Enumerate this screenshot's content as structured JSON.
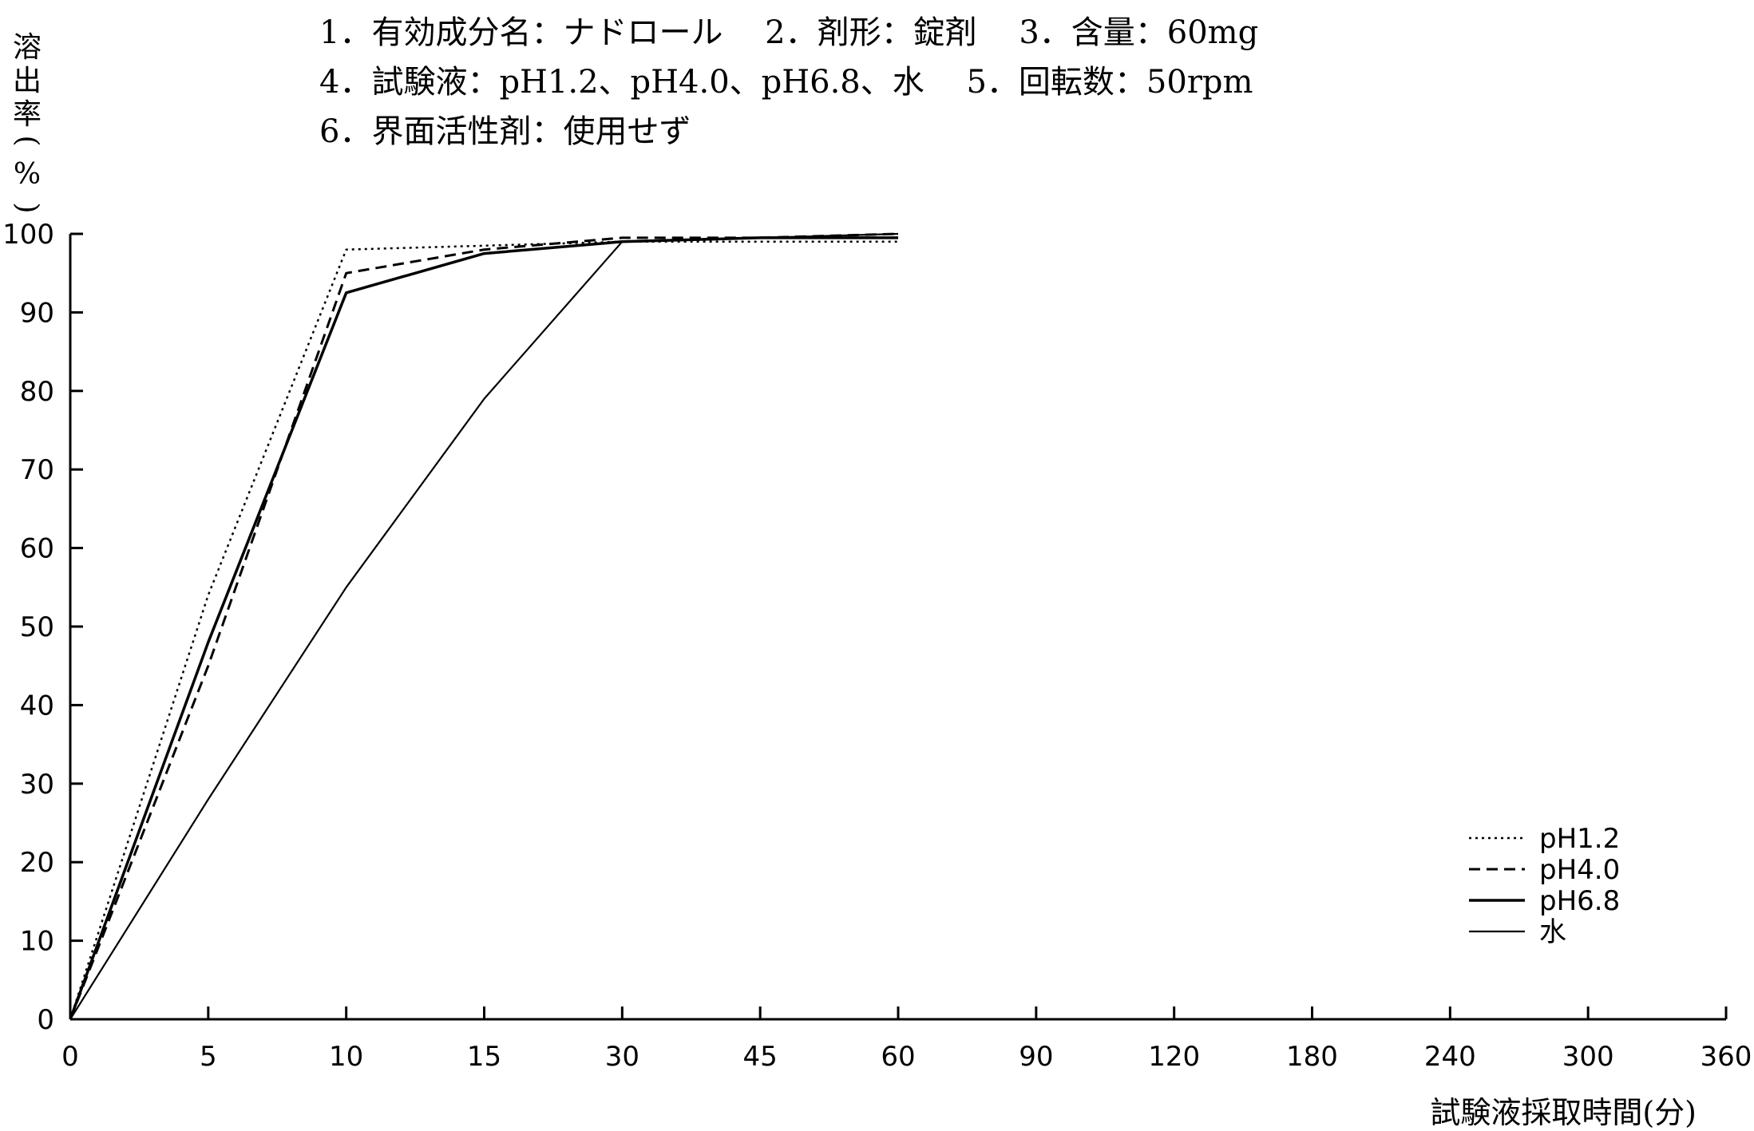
{
  "header": {
    "line1": "1．有効成分名：ナドロール　 2．剤形：錠剤　 3．含量：60mg",
    "line2": "4．試験液：pH1.2、pH4.0、pH6.8、水　 5．回転数：50rpm",
    "line3": "6．界面活性剤：使用せず"
  },
  "chart_data": {
    "type": "line",
    "title": "",
    "xlabel": "試験液採取時間(分)",
    "ylabel": "溶出率(%)",
    "categories": [
      "0",
      "5",
      "10",
      "15",
      "30",
      "45",
      "60",
      "90",
      "120",
      "180",
      "240",
      "300",
      "360"
    ],
    "y_ticks": [
      "0",
      "10",
      "20",
      "30",
      "40",
      "50",
      "60",
      "70",
      "80",
      "90",
      "100"
    ],
    "ylim": [
      0,
      100
    ],
    "grid": false,
    "legend_position": "bottom-right",
    "series": [
      {
        "name": "pH1.2",
        "style": "dotted",
        "x": [
          "0",
          "5",
          "10",
          "15",
          "30",
          "45",
          "60"
        ],
        "values": [
          0,
          54,
          98,
          98.5,
          99,
          99,
          99
        ]
      },
      {
        "name": "pH4.0",
        "style": "dashed",
        "x": [
          "0",
          "5",
          "10",
          "15",
          "30",
          "45",
          "60"
        ],
        "values": [
          0,
          45,
          95,
          98,
          99.5,
          99.5,
          100
        ]
      },
      {
        "name": "pH6.8",
        "style": "solid",
        "x": [
          "0",
          "5",
          "10",
          "15",
          "30",
          "45",
          "60"
        ],
        "values": [
          0,
          48,
          92.5,
          97.5,
          99,
          99.5,
          99.5
        ]
      },
      {
        "name": "水",
        "style": "thin",
        "x": [
          "0",
          "5",
          "10",
          "15",
          "30",
          "45",
          "60"
        ],
        "values": [
          0,
          28,
          55,
          79,
          99,
          99.5,
          100
        ]
      }
    ]
  }
}
